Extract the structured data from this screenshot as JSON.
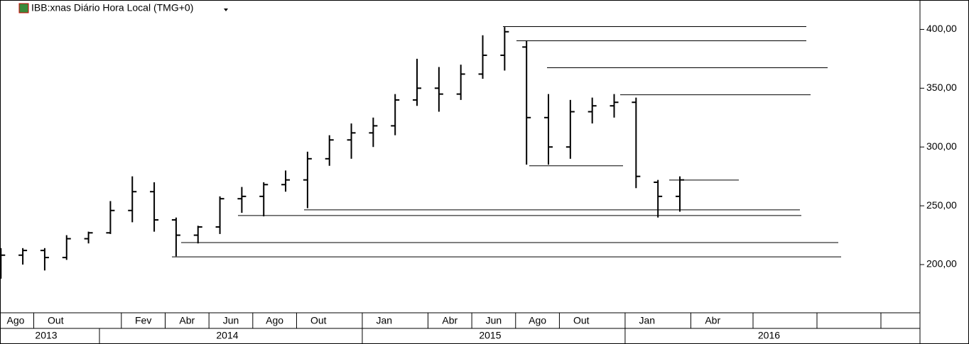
{
  "chart_data": {
    "type": "ohlc",
    "title": "IBB:xnas Diário Hora Local (TMG+0)",
    "x": [
      "2013-08",
      "2013-09",
      "2013-10",
      "2013-11",
      "2013-12",
      "2014-01",
      "2014-02",
      "2014-03",
      "2014-04",
      "2014-05",
      "2014-06",
      "2014-07",
      "2014-08",
      "2014-09",
      "2014-10",
      "2014-11",
      "2014-12",
      "2015-01",
      "2015-02",
      "2015-03",
      "2015-04",
      "2015-05",
      "2015-06",
      "2015-07",
      "2015-08",
      "2015-09",
      "2015-10",
      "2015-11",
      "2015-12",
      "2016-01",
      "2016-02",
      "2016-03"
    ],
    "open": [
      190,
      208,
      212,
      206,
      222,
      227,
      246,
      262,
      238,
      225,
      232,
      256,
      258,
      268,
      272,
      290,
      306,
      312,
      318,
      340,
      350,
      345,
      362,
      378,
      385,
      325,
      300,
      330,
      335,
      338,
      270,
      258
    ],
    "high": [
      214,
      214,
      214,
      225,
      228,
      254,
      275,
      270,
      240,
      233,
      258,
      266,
      270,
      280,
      296,
      310,
      320,
      325,
      345,
      375,
      368,
      370,
      395,
      402,
      390,
      345,
      340,
      342,
      345,
      342,
      272,
      275
    ],
    "low": [
      188,
      200,
      195,
      204,
      218,
      226,
      236,
      228,
      207,
      218,
      226,
      244,
      241,
      262,
      248,
      284,
      290,
      300,
      310,
      335,
      330,
      340,
      358,
      365,
      285,
      285,
      290,
      320,
      325,
      265,
      240,
      245
    ],
    "close": [
      208,
      212,
      206,
      222,
      227,
      246,
      262,
      238,
      225,
      232,
      256,
      258,
      268,
      272,
      290,
      306,
      312,
      318,
      340,
      350,
      345,
      362,
      378,
      398,
      325,
      300,
      330,
      335,
      338,
      275,
      258,
      272
    ],
    "color": "#000000",
    "levels": [
      402.4,
      390.3,
      367.4,
      344.4,
      284,
      271.9,
      246.5,
      241.7,
      218.7,
      206.6
    ],
    "ylim": [
      159,
      425
    ],
    "yticks": [
      {
        "value": 200,
        "label": "200,00"
      },
      {
        "value": 250,
        "label": "250,00"
      },
      {
        "value": 300,
        "label": "300,00"
      },
      {
        "value": 350,
        "label": "350,00"
      },
      {
        "value": 400,
        "label": "400,00"
      }
    ],
    "month_labels": [
      {
        "value": "2013-08",
        "label": "Ago"
      },
      {
        "value": "2013-10",
        "label": "Out"
      },
      {
        "value": "2014-02",
        "label": "Fev"
      },
      {
        "value": "2014-04",
        "label": "Abr"
      },
      {
        "value": "2014-06",
        "label": "Jun"
      },
      {
        "value": "2014-08",
        "label": "Ago"
      },
      {
        "value": "2014-10",
        "label": "Out"
      },
      {
        "value": "2015-01",
        "label": "Jan"
      },
      {
        "value": "2015-04",
        "label": "Abr"
      },
      {
        "value": "2015-06",
        "label": "Jun"
      },
      {
        "value": "2015-08",
        "label": "Ago"
      },
      {
        "value": "2015-10",
        "label": "Out"
      },
      {
        "value": "2016-01",
        "label": "Jan"
      },
      {
        "value": "2016-04",
        "label": "Abr"
      }
    ],
    "year_labels": [
      {
        "value": "2013-01",
        "label": "2013"
      },
      {
        "value": "2014-01",
        "label": "2014"
      },
      {
        "value": "2015-01",
        "label": "2015"
      },
      {
        "value": "2016-01",
        "label": "2016"
      }
    ]
  }
}
